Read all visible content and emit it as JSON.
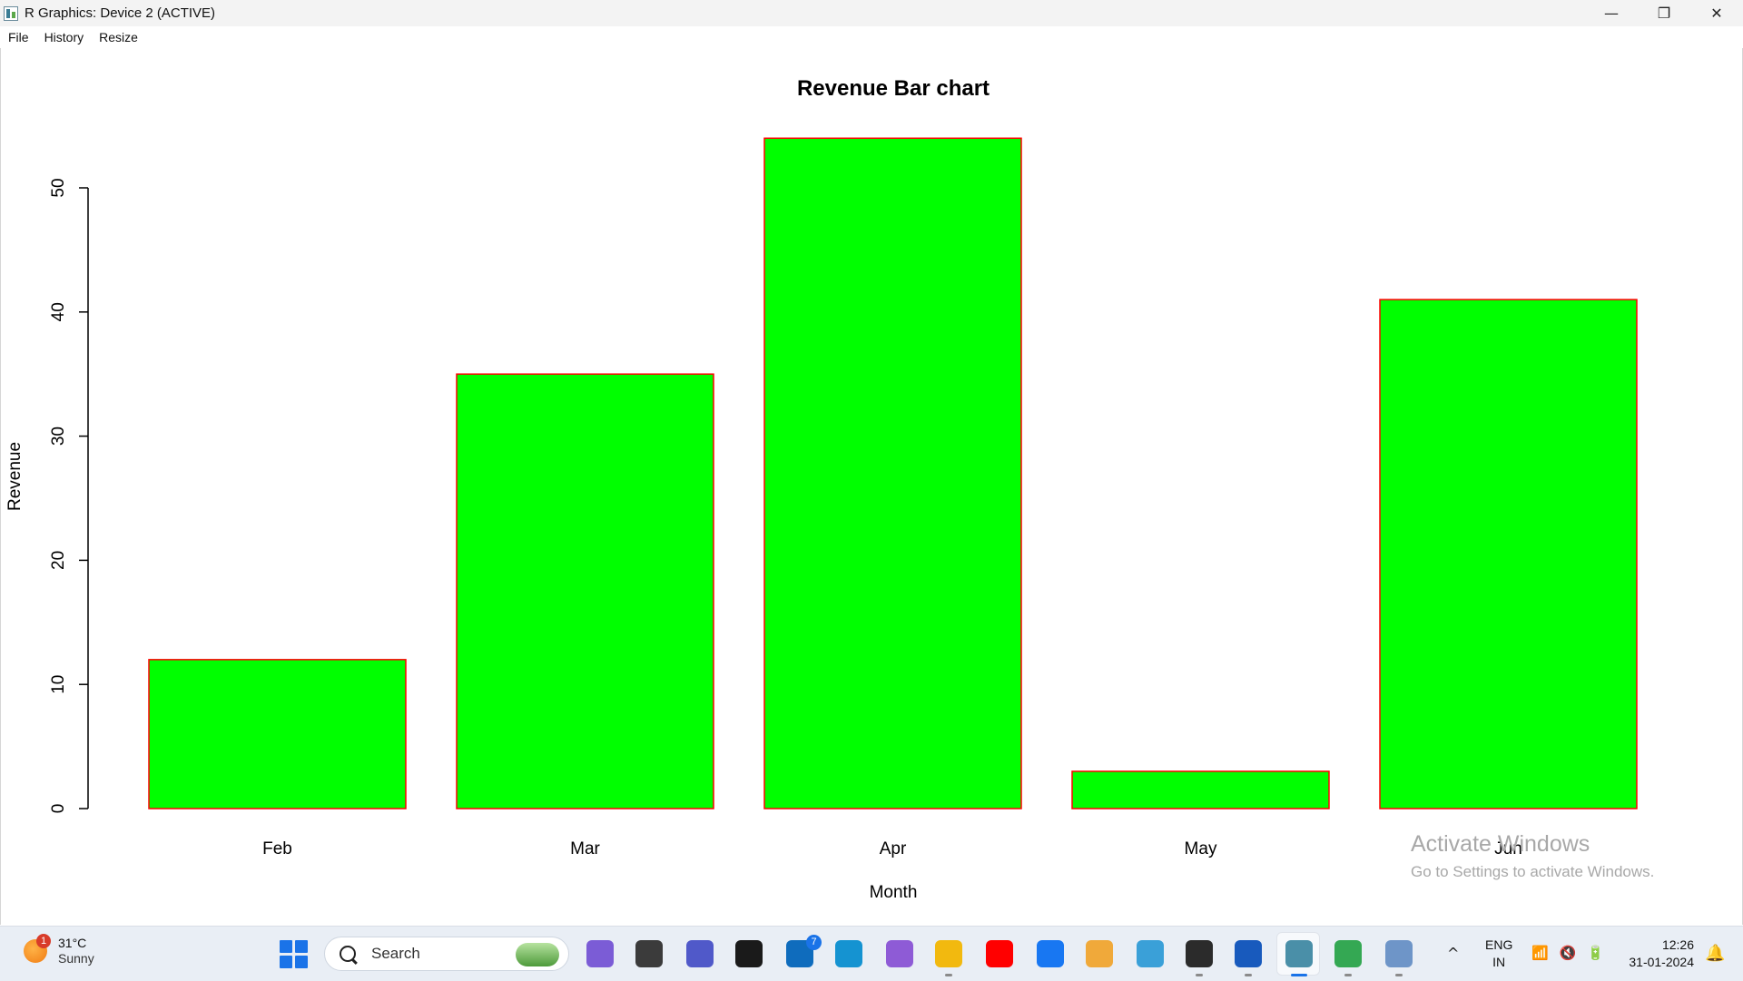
{
  "window": {
    "title": "R Graphics: Device 2 (ACTIVE)",
    "controls": {
      "minimize": "—",
      "restore": "❐",
      "close": "✕"
    }
  },
  "menu": {
    "items": [
      "File",
      "History",
      "Resize"
    ]
  },
  "chart_data": {
    "type": "bar",
    "title": "Revenue Bar chart",
    "xlabel": "Month",
    "ylabel": "Revenue",
    "categories": [
      "Feb",
      "Mar",
      "Apr",
      "May",
      "Jun"
    ],
    "values": [
      12,
      35,
      54,
      3,
      41
    ],
    "ylim": [
      0,
      50
    ],
    "yticks": [
      0,
      10,
      20,
      30,
      40,
      50
    ],
    "bar_color": "#00ff00",
    "border_color": "#ff0000",
    "grid": false,
    "legend": "none"
  },
  "watermark": {
    "line1": "Activate Windows",
    "line2": "Go to Settings to activate Windows."
  },
  "taskbar": {
    "weather": {
      "temp": "31°C",
      "condition": "Sunny",
      "badge": "1"
    },
    "search_label": "Search",
    "apps": [
      {
        "name": "copilot-icon",
        "color": "#7b5cd6"
      },
      {
        "name": "task-view-icon",
        "color": "#3b3b3b"
      },
      {
        "name": "teams-icon",
        "color": "#5059c9"
      },
      {
        "name": "dell-icon",
        "color": "#1a1a1a"
      },
      {
        "name": "mail-icon",
        "color": "#0f6cbd"
      },
      {
        "name": "edge-icon",
        "color": "#1593d1"
      },
      {
        "name": "copilot-app-icon",
        "color": "#8e5bd6"
      },
      {
        "name": "file-explorer-icon",
        "color": "#f2b90f"
      },
      {
        "name": "youtube-icon",
        "color": "#ff0000"
      },
      {
        "name": "facebook-icon",
        "color": "#1877f2"
      },
      {
        "name": "bookmark-app-icon",
        "color": "#f0a93a"
      },
      {
        "name": "snipping-tool-icon",
        "color": "#3aa0d8"
      },
      {
        "name": "terminal-icon",
        "color": "#2b2b2b"
      },
      {
        "name": "word-icon",
        "color": "#185abd"
      },
      {
        "name": "r-graphics-icon",
        "color": "#4a8fa8"
      },
      {
        "name": "chrome-icon",
        "color": "#34a853"
      },
      {
        "name": "r-app-icon",
        "color": "#6e95c8"
      }
    ],
    "mail_badge": "7",
    "tray": {
      "chevron": "^",
      "lang1": "ENG",
      "lang2": "IN",
      "time": "12:26",
      "date": "31-01-2024"
    }
  }
}
